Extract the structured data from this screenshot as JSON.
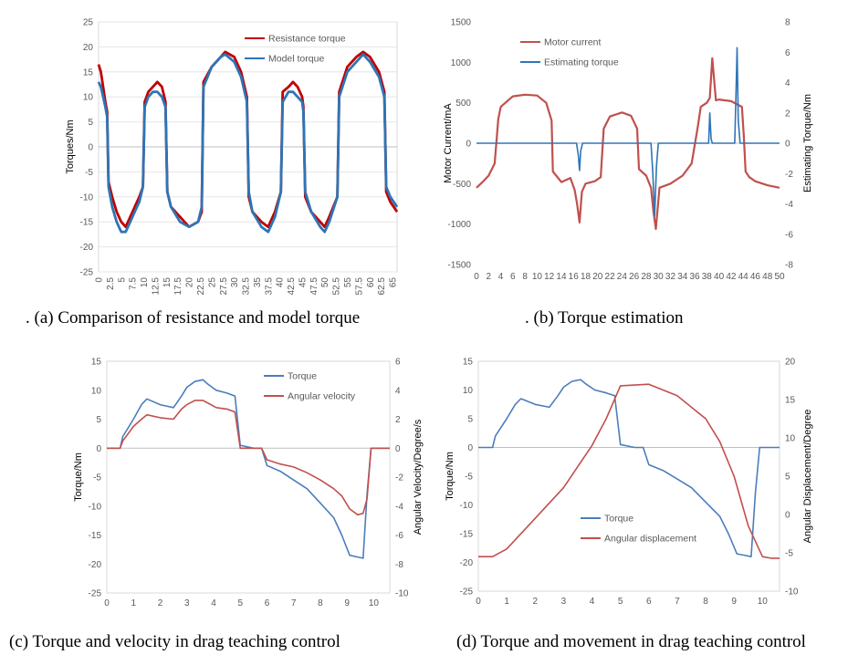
{
  "captions": {
    "a": ". (a) Comparison of resistance and model torque",
    "b": ". (b) Torque estimation",
    "c": "(c) Torque and velocity in drag teaching control",
    "d": "(d) Torque and movement in drag teaching control"
  },
  "chart_data": [
    {
      "id": "a",
      "type": "line",
      "ylabel": "Torques/Nm",
      "xlim": [
        0,
        66
      ],
      "ylim": [
        -25,
        25
      ],
      "yticks": [
        -25,
        -20,
        -15,
        -10,
        -5,
        0,
        5,
        10,
        15,
        20,
        25
      ],
      "xticks": [
        "0",
        "2.5",
        "5",
        "7.5",
        "10",
        "12.5",
        "15",
        "17.5",
        "20",
        "22.5",
        "25",
        "27.5",
        "30",
        "32.5",
        "35",
        "37.5",
        "40",
        "42.5",
        "45",
        "47.5",
        "50",
        "52.5",
        "55",
        "57.5",
        "60",
        "62.5",
        "65"
      ],
      "grid": true,
      "legend": "top-center",
      "series": [
        {
          "name": "Resistance torque",
          "color": "#C00000",
          "x": [
            0,
            0.5,
            1,
            1.5,
            1.9,
            2.2,
            3,
            4,
            5,
            6,
            7,
            8,
            9,
            9.8,
            10.2,
            11,
            12,
            13,
            14,
            14.8,
            15.2,
            16,
            18,
            20,
            22,
            22.8,
            23.2,
            25,
            27,
            28,
            30,
            31.5,
            32.8,
            33.2,
            34,
            36,
            37.5,
            39,
            40.3,
            40.7,
            42,
            43,
            44,
            45,
            45.3,
            45.7,
            47,
            49,
            50,
            51,
            52.8,
            53.2,
            55,
            57,
            58.5,
            60,
            62,
            63.2,
            63.6,
            64.5,
            66
          ],
          "y": [
            16.5,
            15,
            12,
            9,
            7,
            -7,
            -10,
            -13,
            -15,
            -16,
            -14,
            -12,
            -10,
            -8,
            9,
            11,
            12,
            13,
            12,
            9,
            -9,
            -12,
            -14,
            -16,
            -15,
            -13,
            13,
            16,
            18,
            19,
            18,
            15,
            10,
            -10,
            -13,
            -15,
            -16,
            -13,
            -9,
            11,
            12,
            13,
            12,
            10,
            8,
            -10,
            -13,
            -15,
            -16,
            -14,
            -10,
            11,
            16,
            18,
            19,
            18,
            15,
            11,
            -9,
            -11,
            -13
          ]
        },
        {
          "name": "Model torque",
          "color": "#2E75B6",
          "x": [
            0,
            0.5,
            1,
            1.5,
            1.9,
            2.2,
            3,
            4,
            5,
            6,
            7,
            8,
            9,
            9.8,
            10.2,
            11,
            12,
            13,
            14,
            14.8,
            15.2,
            16,
            18,
            20,
            22,
            22.8,
            23.2,
            25,
            27,
            28,
            30,
            31.5,
            32.8,
            33.2,
            34,
            36,
            37.5,
            39,
            40.3,
            40.7,
            42,
            43,
            44,
            45,
            45.3,
            45.7,
            47,
            49,
            50,
            51,
            52.8,
            53.2,
            55,
            57,
            58.5,
            60,
            62,
            63.2,
            63.6,
            64.5,
            66
          ],
          "y": [
            13,
            12,
            10,
            8,
            6,
            -8,
            -12,
            -15,
            -17,
            -17,
            -15,
            -13,
            -11,
            -8,
            8,
            10,
            11,
            11,
            10,
            8,
            -9,
            -12,
            -15,
            -16,
            -15,
            -12,
            12,
            16,
            18,
            18.5,
            17,
            14,
            9,
            -9,
            -13,
            -16,
            -17,
            -14,
            -9,
            9,
            11,
            11,
            10,
            9,
            7,
            -9,
            -13,
            -16,
            -17,
            -15,
            -10,
            10,
            15,
            17,
            18.5,
            17,
            14,
            10,
            -8,
            -10,
            -12
          ]
        }
      ]
    },
    {
      "id": "b",
      "type": "line",
      "ylabel": "Motor Current/mA",
      "y2label": "Estimating Torque/Nm",
      "xlim": [
        0,
        50
      ],
      "ylim": [
        -1500,
        1500
      ],
      "y2lim": [
        -8,
        8
      ],
      "yticks": [
        -1500,
        -1000,
        -500,
        0,
        500,
        1000,
        1500
      ],
      "y2ticks": [
        -8,
        -6,
        -4,
        -2,
        0,
        2,
        4,
        6,
        8
      ],
      "xticks": [
        "0",
        "2",
        "4",
        "6",
        "8",
        "10",
        "12",
        "14",
        "16",
        "18",
        "20",
        "22",
        "24",
        "26",
        "28",
        "30",
        "32",
        "34",
        "36",
        "38",
        "40",
        "42",
        "44",
        "46",
        "48",
        "50"
      ],
      "grid": false,
      "legend": "top-left",
      "series": [
        {
          "name": "Motor current",
          "color": "#C0504D",
          "axis": "left",
          "x": [
            0,
            1,
            2,
            3,
            3.6,
            4,
            6,
            8,
            10,
            11.5,
            12.4,
            12.6,
            14,
            15.5,
            16.2,
            16.6,
            17,
            17.4,
            18,
            19.5,
            20.5,
            21,
            22,
            24,
            25.5,
            26.5,
            26.8,
            28,
            28.8,
            29.2,
            29.6,
            30.2,
            32,
            34,
            35.5,
            36.5,
            37,
            38,
            38.5,
            38.9,
            39.5,
            40,
            42,
            43,
            43.8,
            44.1,
            44.4,
            45,
            46,
            48,
            50
          ],
          "y": [
            -550,
            -480,
            -400,
            -250,
            300,
            450,
            580,
            600,
            590,
            500,
            280,
            -350,
            -480,
            -430,
            -580,
            -750,
            -980,
            -600,
            -500,
            -470,
            -420,
            180,
            330,
            380,
            340,
            180,
            -320,
            -400,
            -550,
            -850,
            -1060,
            -550,
            -500,
            -400,
            -250,
            200,
            450,
            500,
            560,
            1050,
            530,
            540,
            520,
            480,
            450,
            100,
            -350,
            -420,
            -470,
            -520,
            -550
          ]
        },
        {
          "name": "Estimating torque",
          "color": "#2E75B6",
          "axis": "right",
          "x": [
            0,
            16.5,
            16.8,
            17,
            17.2,
            17.5,
            28.8,
            29.1,
            29.4,
            29.7,
            30,
            38.3,
            38.5,
            38.7,
            38.9,
            42.6,
            42.8,
            43,
            43.2,
            43.5,
            50
          ],
          "y": [
            0,
            0,
            -0.8,
            -1.8,
            -0.5,
            0,
            0,
            -2,
            -4.8,
            -1.5,
            0,
            0,
            2,
            0.3,
            0,
            0,
            3,
            6.3,
            1.5,
            0,
            0
          ]
        }
      ]
    },
    {
      "id": "c",
      "type": "line",
      "ylabel": "Torque/Nm",
      "y2label": "Angular Velocity/Degree/s",
      "xlim": [
        0,
        10.6
      ],
      "ylim": [
        -25,
        15
      ],
      "y2lim": [
        -10,
        6
      ],
      "yticks": [
        -25,
        -20,
        -15,
        -10,
        -5,
        0,
        5,
        10,
        15
      ],
      "y2ticks": [
        -10,
        -8,
        -6,
        -4,
        -2,
        0,
        2,
        4,
        6
      ],
      "xticks": [
        "0",
        "1",
        "2",
        "3",
        "4",
        "5",
        "6",
        "7",
        "8",
        "9",
        "10"
      ],
      "grid": false,
      "legend": "top-right",
      "series": [
        {
          "name": "Torque",
          "color": "#4A7EBB",
          "axis": "left",
          "x": [
            0,
            0.5,
            0.6,
            0.8,
            1.0,
            1.3,
            1.5,
            2,
            2.5,
            2.8,
            3,
            3.3,
            3.6,
            3.8,
            4.1,
            4.5,
            4.8,
            5.0,
            5.5,
            5.8,
            6.0,
            6.5,
            7,
            7.5,
            8,
            8.5,
            8.8,
            9.1,
            9.4,
            9.6,
            9.75,
            9.9,
            10.6
          ],
          "y": [
            0,
            0,
            2,
            3.5,
            5,
            7.5,
            8.5,
            7.5,
            7,
            9,
            10.5,
            11.5,
            11.8,
            11,
            10,
            9.5,
            9,
            0.5,
            0,
            0,
            -3,
            -4,
            -5.5,
            -7,
            -9.5,
            -12,
            -15,
            -18.5,
            -18.8,
            -19,
            -8,
            0,
            0
          ]
        },
        {
          "name": "Angular velocity",
          "color": "#C0504D",
          "axis": "right",
          "x": [
            0,
            0.5,
            0.6,
            0.8,
            1.0,
            1.3,
            1.5,
            2,
            2.5,
            2.8,
            3,
            3.3,
            3.6,
            3.8,
            4.1,
            4.5,
            4.8,
            5.0,
            5.5,
            5.8,
            6.0,
            6.5,
            7,
            7.5,
            8,
            8.5,
            8.8,
            9.1,
            9.4,
            9.6,
            9.75,
            9.9,
            10.6
          ],
          "y": [
            0,
            0,
            0.5,
            1,
            1.5,
            2,
            2.3,
            2.1,
            2,
            2.7,
            3,
            3.3,
            3.3,
            3.1,
            2.8,
            2.7,
            2.5,
            0,
            0,
            0,
            -0.8,
            -1.1,
            -1.3,
            -1.7,
            -2.2,
            -2.8,
            -3.3,
            -4.2,
            -4.6,
            -4.5,
            -3.5,
            0,
            0
          ]
        }
      ]
    },
    {
      "id": "d",
      "type": "line",
      "ylabel": "Torque/Nm",
      "y2label": "Angular Displacement/Degree",
      "xlim": [
        0,
        10.6
      ],
      "ylim": [
        -25,
        15
      ],
      "y2lim": [
        -10,
        20
      ],
      "yticks": [
        -25,
        -20,
        -15,
        -10,
        -5,
        0,
        5,
        10,
        15
      ],
      "y2ticks": [
        -10,
        -5,
        0,
        5,
        10,
        15,
        20
      ],
      "xticks": [
        "0",
        "1",
        "2",
        "3",
        "4",
        "5",
        "6",
        "7",
        "8",
        "9",
        "10"
      ],
      "grid": false,
      "legend": "bottom-center",
      "series": [
        {
          "name": "Torque",
          "color": "#4A7EBB",
          "axis": "left",
          "x": [
            0,
            0.5,
            0.6,
            0.8,
            1.0,
            1.3,
            1.5,
            2,
            2.5,
            2.8,
            3,
            3.3,
            3.6,
            3.8,
            4.1,
            4.5,
            4.8,
            5.0,
            5.5,
            5.8,
            6.0,
            6.5,
            7,
            7.5,
            8,
            8.5,
            8.8,
            9.1,
            9.4,
            9.6,
            9.75,
            9.9,
            10.6
          ],
          "y": [
            0,
            0,
            2,
            3.5,
            5,
            7.5,
            8.5,
            7.5,
            7,
            9,
            10.5,
            11.5,
            11.8,
            11,
            10,
            9.5,
            9,
            0.5,
            0,
            0,
            -3,
            -4,
            -5.5,
            -7,
            -9.5,
            -12,
            -15,
            -18.5,
            -18.8,
            -19,
            -8,
            0,
            0
          ]
        },
        {
          "name": "Angular displacement",
          "color": "#C0504D",
          "axis": "right",
          "x": [
            0,
            0.5,
            1,
            2,
            3,
            4,
            4.5,
            5,
            6,
            7,
            8,
            8.5,
            9,
            9.5,
            10,
            10.3,
            10.6
          ],
          "y": [
            -5.5,
            -5.5,
            -4.5,
            -0.5,
            3.5,
            9,
            12.5,
            16.8,
            17,
            15.5,
            12.5,
            9.5,
            5,
            -1.5,
            -5.5,
            -5.7,
            -5.7
          ]
        }
      ]
    }
  ]
}
